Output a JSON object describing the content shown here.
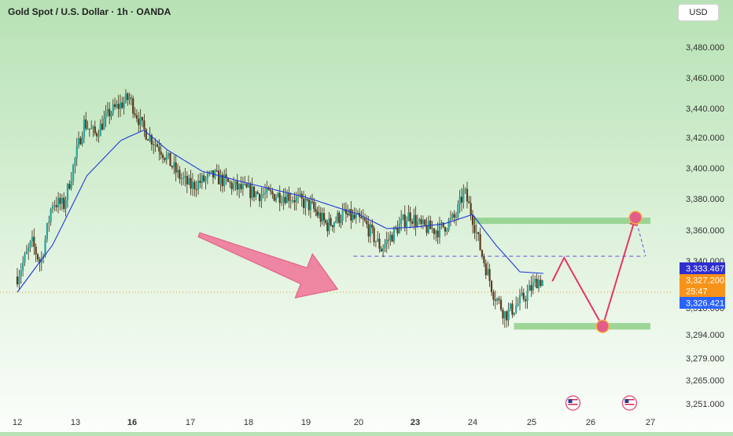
{
  "header": {
    "title": "Gold Spot / U.S. Dollar · 1h · OANDA",
    "currency_button": "USD"
  },
  "colors": {
    "bull": "#26a69a",
    "bear": "#5d3a1a",
    "candle_wick": "#3b2a15",
    "ma": "#1f3ad8",
    "zone": "#8fd08a",
    "arrow": "#f07a9c",
    "projection": "#e8336b",
    "dashed": "#6b4fd8",
    "current_line": "#f7931a"
  },
  "price_labels": [
    {
      "value": "3,333.467",
      "color": "#2f2fd0"
    },
    {
      "value": "3,327.200",
      "color": "#f7931a"
    },
    {
      "value": "25:47",
      "color": "#f7931a"
    },
    {
      "value": "3,326.421",
      "color": "#2962ff"
    }
  ],
  "chart_data": {
    "type": "candlestick",
    "title": "Gold Spot / U.S. Dollar · 1h · OANDA",
    "y_axis_ticks": [
      "3,480.000",
      "3,460.000",
      "3,440.000",
      "3,420.000",
      "3,400.000",
      "3,380.000",
      "3,360.000",
      "3,340.000",
      "3,310.000",
      "3,294.000",
      "3,279.000",
      "3,265.000",
      "3,251.000"
    ],
    "y_tick_values": [
      3480,
      3460,
      3440,
      3420,
      3400,
      3380,
      3360,
      3340,
      3310,
      3294,
      3279,
      3265,
      3251
    ],
    "x_axis_ticks": [
      {
        "label": "12",
        "bold": false
      },
      {
        "label": "13",
        "bold": false
      },
      {
        "label": "16",
        "bold": true
      },
      {
        "label": "17",
        "bold": false
      },
      {
        "label": "18",
        "bold": false
      },
      {
        "label": "19",
        "bold": false
      },
      {
        "label": "20",
        "bold": false
      },
      {
        "label": "23",
        "bold": true
      },
      {
        "label": "24",
        "bold": false
      },
      {
        "label": "25",
        "bold": false
      },
      {
        "label": "26",
        "bold": false
      },
      {
        "label": "27",
        "bold": false
      }
    ],
    "x_tick_index": [
      0,
      1,
      2,
      3,
      4,
      5,
      6,
      7,
      8,
      9,
      10,
      11
    ],
    "price_anchors": [
      [
        0,
        3330
      ],
      [
        0.25,
        3352
      ],
      [
        0.4,
        3338
      ],
      [
        0.6,
        3378
      ],
      [
        0.8,
        3376
      ],
      [
        1.15,
        3430
      ],
      [
        1.35,
        3422
      ],
      [
        1.6,
        3437
      ],
      [
        1.95,
        3447
      ],
      [
        2.2,
        3425
      ],
      [
        2.5,
        3412
      ],
      [
        2.8,
        3395
      ],
      [
        3.0,
        3388
      ],
      [
        3.4,
        3395
      ],
      [
        3.8,
        3387
      ],
      [
        4.2,
        3383
      ],
      [
        4.7,
        3382
      ],
      [
        5.1,
        3375
      ],
      [
        5.4,
        3363
      ],
      [
        5.7,
        3370
      ],
      [
        6.1,
        3365
      ],
      [
        6.4,
        3348
      ],
      [
        6.7,
        3362
      ],
      [
        6.9,
        3370
      ],
      [
        7.1,
        3362
      ],
      [
        7.4,
        3360
      ],
      [
        7.7,
        3368
      ],
      [
        7.85,
        3385
      ],
      [
        8.0,
        3368
      ],
      [
        8.15,
        3345
      ],
      [
        8.35,
        3320
      ],
      [
        8.55,
        3306
      ],
      [
        8.7,
        3310
      ],
      [
        8.9,
        3318
      ],
      [
        9.1,
        3328
      ],
      [
        9.2,
        3327
      ]
    ],
    "ma_anchors": [
      [
        0,
        3320
      ],
      [
        0.6,
        3350
      ],
      [
        1.2,
        3395
      ],
      [
        1.8,
        3418
      ],
      [
        2.2,
        3425
      ],
      [
        2.6,
        3412
      ],
      [
        3.2,
        3398
      ],
      [
        4.0,
        3390
      ],
      [
        5.0,
        3381
      ],
      [
        6.0,
        3370
      ],
      [
        6.5,
        3361
      ],
      [
        7.0,
        3362
      ],
      [
        7.5,
        3364
      ],
      [
        8.0,
        3370
      ],
      [
        8.4,
        3350
      ],
      [
        8.8,
        3333
      ],
      [
        9.2,
        3332
      ]
    ],
    "resistance_zone": {
      "top": 3368,
      "bottom": 3364,
      "x_start": 8.0,
      "x_end": 11.0
    },
    "support_zone": {
      "top": 3301,
      "bottom": 3298,
      "x_start": 8.7,
      "x_end": 11.0
    },
    "dashed_level": {
      "value": 3343,
      "x_start": 5.9,
      "x_end": 10.9
    },
    "current_price_line": 3333,
    "down_arrow": {
      "from": [
        3.15,
        3357
      ],
      "to": [
        5.6,
        3322
      ]
    },
    "projection_path": [
      [
        9.35,
        3327
      ],
      [
        9.55,
        3342
      ],
      [
        10.2,
        3299
      ],
      [
        10.75,
        3368
      ]
    ],
    "projection_markers": [
      [
        10.2,
        3299
      ],
      [
        10.75,
        3368
      ]
    ],
    "dashed_return": [
      [
        10.75,
        3368
      ],
      [
        10.92,
        3343
      ]
    ],
    "event_icons_x": [
      9.7,
      10.65
    ],
    "ylim": [
      3240,
      3492
    ]
  }
}
